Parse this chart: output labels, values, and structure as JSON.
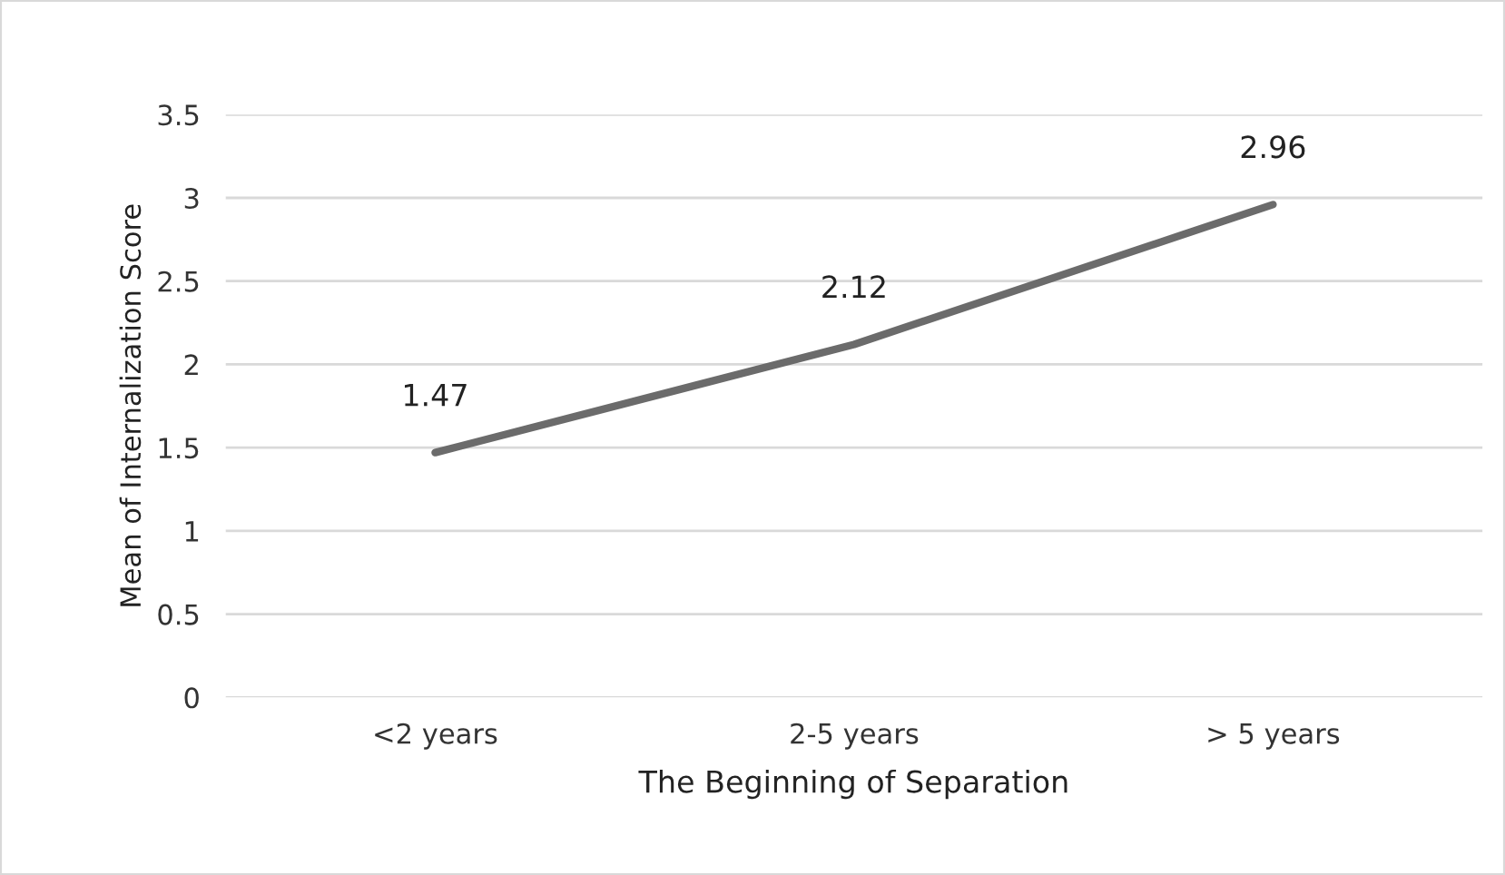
{
  "chart_data": {
    "type": "line",
    "xlabel": "The Beginning of Separation",
    "ylabel": "Mean of Internalization Score",
    "categories": [
      "<2 years",
      "2-5 years",
      "> 5 years"
    ],
    "series": [
      {
        "color": "#6b6b6b",
        "values": [
          1.47,
          2.12,
          2.96
        ]
      }
    ],
    "ylim": [
      0,
      3.5
    ],
    "yticks": [
      0,
      0.5,
      1,
      1.5,
      2,
      2.5,
      3,
      3.5
    ],
    "grid": "y",
    "data_labels": true,
    "marker": "none",
    "line_style": "solid"
  }
}
